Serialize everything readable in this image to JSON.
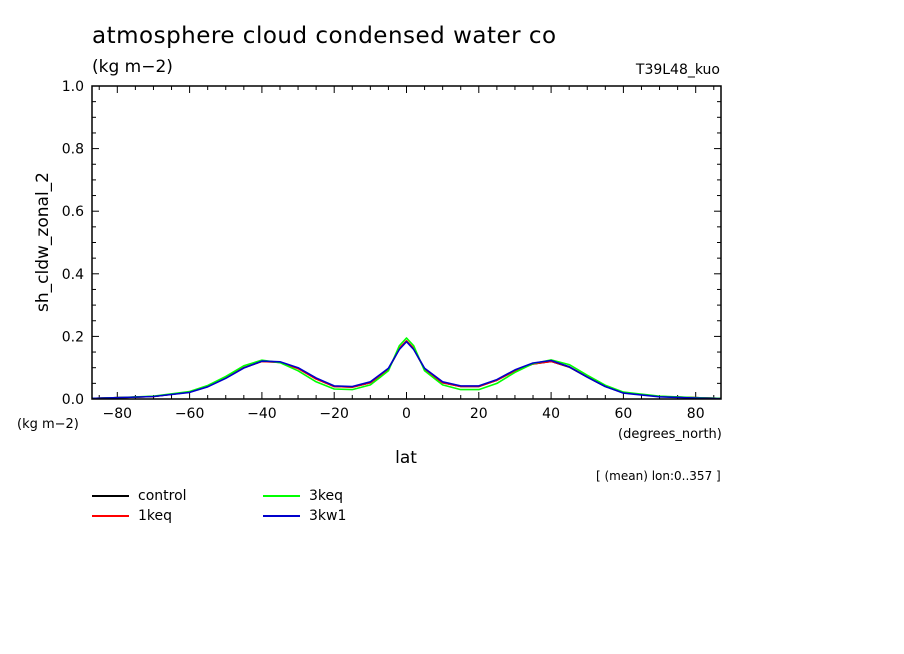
{
  "header": {
    "title": "atmosphere cloud condensed water co",
    "units": "(kg m−2)",
    "run_id": "T39L48_kuo"
  },
  "footer": {
    "note": "[ (mean) lon:0..357 ]"
  },
  "chart_data": {
    "type": "line",
    "title": "atmosphere cloud condensed water co",
    "xlabel": "lat",
    "xunits": "(degrees_north)",
    "ylabel": "sh_cldw_zonal_2",
    "yunits": "(kg m−2)",
    "xlim": [
      -87,
      87
    ],
    "ylim": [
      0.0,
      1.0
    ],
    "xticks": [
      -80,
      -60,
      -40,
      -20,
      0,
      20,
      40,
      60,
      80
    ],
    "xtick_labels": [
      "−80",
      "−60",
      "−40",
      "−20",
      "0",
      "20",
      "40",
      "60",
      "80"
    ],
    "yticks": [
      0.0,
      0.2,
      0.4,
      0.6,
      0.8,
      1.0
    ],
    "ytick_labels": [
      "0.0",
      "0.2",
      "0.4",
      "0.6",
      "0.8",
      "1.0"
    ],
    "grid": false,
    "legend_position": "below",
    "series": [
      {
        "name": "control",
        "color": "#000000",
        "x": [
          -87,
          -80,
          -70,
          -60,
          -55,
          -50,
          -45,
          -40,
          -35,
          -30,
          -25,
          -20,
          -15,
          -10,
          -5,
          -2,
          0,
          2,
          5,
          10,
          15,
          20,
          25,
          30,
          35,
          40,
          45,
          50,
          55,
          60,
          70,
          80,
          87
        ],
        "y": [
          0.002,
          0.004,
          0.008,
          0.022,
          0.04,
          0.068,
          0.1,
          0.12,
          0.118,
          0.098,
          0.065,
          0.04,
          0.038,
          0.052,
          0.095,
          0.16,
          0.185,
          0.16,
          0.095,
          0.052,
          0.04,
          0.04,
          0.06,
          0.09,
          0.112,
          0.12,
          0.102,
          0.07,
          0.04,
          0.02,
          0.008,
          0.004,
          0.002
        ]
      },
      {
        "name": "1keq",
        "color": "#ff0000",
        "x": [
          -87,
          -80,
          -70,
          -60,
          -55,
          -50,
          -45,
          -40,
          -35,
          -30,
          -25,
          -20,
          -15,
          -10,
          -5,
          -2,
          0,
          2,
          5,
          10,
          15,
          20,
          25,
          30,
          35,
          40,
          45,
          50,
          55,
          60,
          70,
          80,
          87
        ],
        "y": [
          0.002,
          0.004,
          0.008,
          0.022,
          0.04,
          0.068,
          0.1,
          0.12,
          0.117,
          0.097,
          0.064,
          0.04,
          0.038,
          0.052,
          0.095,
          0.162,
          0.186,
          0.162,
          0.095,
          0.052,
          0.04,
          0.04,
          0.06,
          0.09,
          0.112,
          0.12,
          0.103,
          0.071,
          0.041,
          0.02,
          0.008,
          0.004,
          0.002
        ]
      },
      {
        "name": "3keq",
        "color": "#00ff00",
        "x": [
          -87,
          -80,
          -70,
          -60,
          -55,
          -50,
          -45,
          -40,
          -35,
          -30,
          -25,
          -20,
          -15,
          -10,
          -5,
          -2,
          0,
          2,
          5,
          10,
          15,
          20,
          25,
          30,
          35,
          40,
          45,
          50,
          55,
          60,
          70,
          80,
          87
        ],
        "y": [
          0.002,
          0.004,
          0.009,
          0.024,
          0.043,
          0.072,
          0.106,
          0.124,
          0.116,
          0.09,
          0.055,
          0.032,
          0.03,
          0.045,
          0.09,
          0.17,
          0.195,
          0.17,
          0.09,
          0.045,
          0.03,
          0.03,
          0.05,
          0.085,
          0.113,
          0.125,
          0.11,
          0.076,
          0.044,
          0.022,
          0.009,
          0.004,
          0.002
        ]
      },
      {
        "name": "3kw1",
        "color": "#0000cc",
        "x": [
          -87,
          -80,
          -70,
          -60,
          -55,
          -50,
          -45,
          -40,
          -35,
          -30,
          -25,
          -20,
          -15,
          -10,
          -5,
          -2,
          0,
          2,
          5,
          10,
          15,
          20,
          25,
          30,
          35,
          40,
          45,
          50,
          55,
          60,
          70,
          80,
          87
        ],
        "y": [
          0.002,
          0.004,
          0.008,
          0.021,
          0.039,
          0.066,
          0.099,
          0.121,
          0.119,
          0.1,
          0.067,
          0.042,
          0.04,
          0.055,
          0.098,
          0.158,
          0.183,
          0.158,
          0.098,
          0.055,
          0.042,
          0.042,
          0.062,
          0.093,
          0.115,
          0.123,
          0.103,
          0.07,
          0.04,
          0.019,
          0.007,
          0.003,
          0.001
        ]
      }
    ]
  }
}
